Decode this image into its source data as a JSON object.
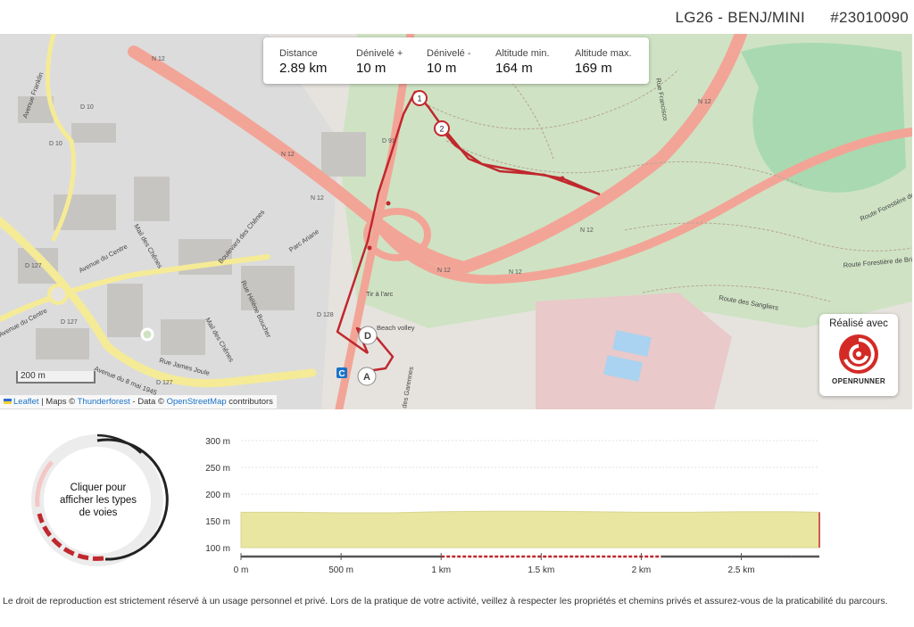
{
  "header": {
    "route_name": "LG26 - BENJ/MINI",
    "route_id": "#23010090"
  },
  "stats": [
    {
      "label": "Distance",
      "value": "2.89 km"
    },
    {
      "label": "Dénivelé +",
      "value": "10 m"
    },
    {
      "label": "Dénivelé -",
      "value": "10 m"
    },
    {
      "label": "Altitude min.",
      "value": "164 m"
    },
    {
      "label": "Altitude max.",
      "value": "169 m"
    }
  ],
  "map": {
    "road_labels": [
      "N 12",
      "N 12",
      "N 12",
      "N 12",
      "N 12",
      "N 12",
      "N 12",
      "D 10",
      "D 10",
      "D 127",
      "D 127",
      "D 127",
      "D 128",
      "D 91"
    ],
    "street_labels": [
      "Avenue Franklin",
      "Mail des Chênes",
      "Avenue du Centre",
      "Boulevard des Chênes",
      "Parc Ariane",
      "Rue Hélène Boucher",
      "Mail des Chênes",
      "Rue James Joule",
      "Avenue du 8 mai 1945",
      "Avenue du Centre",
      "Rue Francisco",
      "Route Forestière de l'Ep",
      "Route Forestière de Brie",
      "Route des Sangliers",
      "des Garennes",
      "Tir à l'arc",
      "Beach volley"
    ],
    "markers": {
      "start": "D",
      "end": "A",
      "km1": "1",
      "km2": "2",
      "poi": "C"
    },
    "scale_label": "200 m",
    "attribution": {
      "leaflet": "Leaflet",
      "sep1": " | Maps © ",
      "thunderforest": "Thunderforest",
      "sep2": " - Data © ",
      "osm": "OpenStreetMap",
      "suffix": " contributors"
    },
    "colors": {
      "track": "#c0282d",
      "road_main": "#f2a597",
      "road_yellow": "#f5eb96",
      "forest": "#cfe3c4",
      "urban": "#d8d8d8",
      "water": "#a9d3f0"
    }
  },
  "brand": {
    "made_with": "Réalisé avec",
    "name": "OPENRUNNER",
    "color": "#d42a26"
  },
  "ring": {
    "text": "Cliquer pour afficher les types de voies"
  },
  "chart_data": {
    "type": "area",
    "title": "",
    "xlabel": "",
    "ylabel": "",
    "x_tick_labels": [
      "0 m",
      "500 m",
      "1 km",
      "1.5 km",
      "2 km",
      "2.5 km"
    ],
    "y_tick_labels": [
      "300 m",
      "250 m",
      "200 m",
      "150 m",
      "100 m"
    ],
    "xlim": [
      0,
      2.89
    ],
    "ylim": [
      100,
      300
    ],
    "x_ticks_km": [
      0,
      0.5,
      1,
      1.5,
      2,
      2.5
    ],
    "y_ticks": [
      300,
      250,
      200,
      150,
      100
    ],
    "series": [
      {
        "x": [
          0,
          0.25,
          0.5,
          0.75,
          1.0,
          1.25,
          1.5,
          1.75,
          2.0,
          2.25,
          2.5,
          2.75,
          2.89
        ],
        "y": [
          166,
          166,
          165,
          165,
          167,
          168,
          168,
          167,
          166,
          166,
          167,
          167,
          166
        ]
      }
    ],
    "fill_color": "#e8e6a0",
    "track_segments": [
      {
        "from": 0,
        "to": 0.35,
        "color": "#555555"
      },
      {
        "from": 0.35,
        "to": 1.0,
        "color": "#555555"
      },
      {
        "from": 1.0,
        "to": 2.1,
        "color": "#c0282d"
      },
      {
        "from": 2.1,
        "to": 2.75,
        "color": "#555555"
      },
      {
        "from": 2.75,
        "to": 2.89,
        "color": "#555555"
      }
    ]
  },
  "legal": "Le droit de reproduction est strictement réservé à un usage personnel et privé. Lors de la pratique de votre activité, veillez à respecter les propriétés et chemins privés et assurez-vous de la praticabilité du parcours."
}
